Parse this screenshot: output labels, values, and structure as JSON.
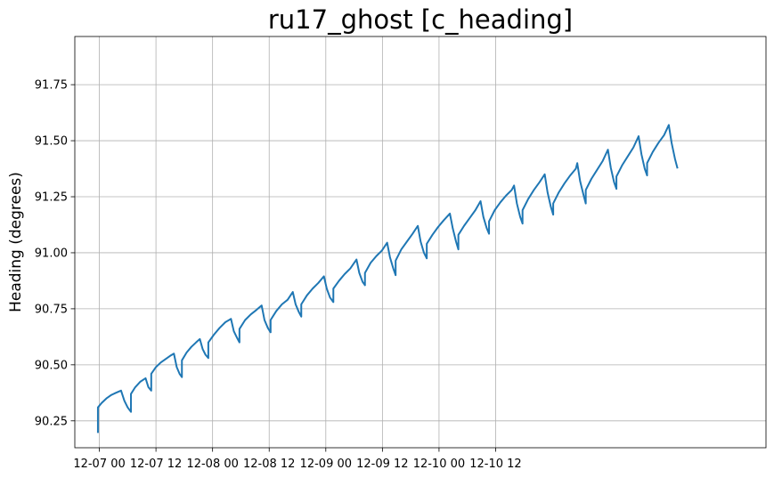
{
  "chart_data": {
    "type": "line",
    "title": "ru17_ghost [c_heading]",
    "xlabel": "",
    "ylabel": "Heading (degrees)",
    "x_unit": "hours since 12-07 00",
    "xlim": [
      -5.2,
      141.3
    ],
    "ylim": [
      90.13,
      91.965
    ],
    "grid": true,
    "legend": "none",
    "x_ticks": [
      {
        "value": 0,
        "label": "12-07 00"
      },
      {
        "value": 12,
        "label": "12-07 12"
      },
      {
        "value": 24,
        "label": "12-08 00"
      },
      {
        "value": 36,
        "label": "12-08 12"
      },
      {
        "value": 48,
        "label": "12-09 00"
      },
      {
        "value": 60,
        "label": "12-09 12"
      },
      {
        "value": 72,
        "label": "12-10 00"
      },
      {
        "value": 84,
        "label": "12-10 12"
      }
    ],
    "y_ticks": [
      {
        "value": 90.25,
        "label": "90.25"
      },
      {
        "value": 90.5,
        "label": "90.50"
      },
      {
        "value": 90.75,
        "label": "90.75"
      },
      {
        "value": 91.0,
        "label": "91.00"
      },
      {
        "value": 91.25,
        "label": "91.25"
      },
      {
        "value": 91.5,
        "label": "91.50"
      },
      {
        "value": 91.75,
        "label": "91.75"
      }
    ],
    "series": [
      {
        "name": "c_heading",
        "color": "#1f77b4",
        "points": [
          [
            -0.3,
            90.2
          ],
          [
            -0.3,
            90.31
          ],
          [
            0.5,
            90.33
          ],
          [
            1.5,
            90.35
          ],
          [
            2.5,
            90.365
          ],
          [
            3.5,
            90.375
          ],
          [
            4.6,
            90.385
          ],
          [
            5.3,
            90.34
          ],
          [
            6.0,
            90.31
          ],
          [
            6.7,
            90.29
          ],
          [
            6.7,
            90.37
          ],
          [
            7.6,
            90.4
          ],
          [
            8.7,
            90.425
          ],
          [
            9.8,
            90.44
          ],
          [
            10.4,
            90.4
          ],
          [
            11.0,
            90.385
          ],
          [
            11.0,
            90.46
          ],
          [
            12.0,
            90.49
          ],
          [
            13.0,
            90.51
          ],
          [
            14.0,
            90.525
          ],
          [
            15.0,
            90.54
          ],
          [
            15.8,
            90.55
          ],
          [
            16.4,
            90.49
          ],
          [
            17.0,
            90.46
          ],
          [
            17.5,
            90.445
          ],
          [
            17.5,
            90.52
          ],
          [
            18.5,
            90.555
          ],
          [
            19.5,
            90.58
          ],
          [
            20.5,
            90.6
          ],
          [
            21.3,
            90.615
          ],
          [
            21.9,
            90.57
          ],
          [
            22.5,
            90.545
          ],
          [
            23.1,
            90.53
          ],
          [
            23.1,
            90.6
          ],
          [
            24.3,
            90.635
          ],
          [
            25.5,
            90.665
          ],
          [
            26.7,
            90.69
          ],
          [
            27.9,
            90.705
          ],
          [
            28.5,
            90.65
          ],
          [
            29.2,
            90.62
          ],
          [
            29.7,
            90.6
          ],
          [
            29.7,
            90.66
          ],
          [
            30.9,
            90.7
          ],
          [
            32.1,
            90.725
          ],
          [
            33.3,
            90.745
          ],
          [
            34.4,
            90.765
          ],
          [
            35.0,
            90.7
          ],
          [
            35.7,
            90.665
          ],
          [
            36.3,
            90.645
          ],
          [
            36.3,
            90.7
          ],
          [
            37.5,
            90.74
          ],
          [
            38.7,
            90.77
          ],
          [
            39.9,
            90.79
          ],
          [
            41.0,
            90.825
          ],
          [
            41.6,
            90.77
          ],
          [
            42.3,
            90.735
          ],
          [
            42.8,
            90.715
          ],
          [
            42.8,
            90.77
          ],
          [
            44.0,
            90.81
          ],
          [
            45.2,
            90.84
          ],
          [
            46.4,
            90.865
          ],
          [
            47.6,
            90.895
          ],
          [
            48.2,
            90.84
          ],
          [
            48.9,
            90.8
          ],
          [
            49.6,
            90.78
          ],
          [
            49.6,
            90.84
          ],
          [
            50.8,
            90.875
          ],
          [
            52.0,
            90.905
          ],
          [
            53.2,
            90.93
          ],
          [
            54.5,
            90.97
          ],
          [
            55.1,
            90.91
          ],
          [
            55.8,
            90.87
          ],
          [
            56.3,
            90.855
          ],
          [
            56.3,
            90.91
          ],
          [
            57.5,
            90.955
          ],
          [
            58.7,
            90.985
          ],
          [
            59.9,
            91.01
          ],
          [
            61.0,
            91.045
          ],
          [
            61.6,
            90.98
          ],
          [
            62.3,
            90.93
          ],
          [
            62.8,
            90.9
          ],
          [
            62.8,
            90.965
          ],
          [
            64.0,
            91.015
          ],
          [
            65.2,
            91.05
          ],
          [
            66.4,
            91.085
          ],
          [
            67.5,
            91.12
          ],
          [
            68.1,
            91.05
          ],
          [
            68.8,
            91.0
          ],
          [
            69.4,
            90.975
          ],
          [
            69.4,
            91.04
          ],
          [
            70.6,
            91.08
          ],
          [
            71.8,
            91.115
          ],
          [
            73.0,
            91.145
          ],
          [
            74.3,
            91.175
          ],
          [
            74.9,
            91.11
          ],
          [
            75.6,
            91.05
          ],
          [
            76.1,
            91.015
          ],
          [
            76.1,
            91.08
          ],
          [
            77.3,
            91.12
          ],
          [
            78.5,
            91.155
          ],
          [
            79.7,
            91.19
          ],
          [
            80.8,
            91.23
          ],
          [
            81.4,
            91.16
          ],
          [
            82.1,
            91.11
          ],
          [
            82.6,
            91.085
          ],
          [
            82.6,
            91.14
          ],
          [
            83.8,
            91.19
          ],
          [
            85.0,
            91.225
          ],
          [
            86.2,
            91.255
          ],
          [
            87.4,
            91.28
          ],
          [
            87.9,
            91.3
          ],
          [
            88.5,
            91.22
          ],
          [
            89.2,
            91.16
          ],
          [
            89.7,
            91.13
          ],
          [
            89.7,
            91.19
          ],
          [
            90.9,
            91.24
          ],
          [
            92.1,
            91.28
          ],
          [
            93.3,
            91.315
          ],
          [
            94.4,
            91.35
          ],
          [
            95.0,
            91.27
          ],
          [
            95.7,
            91.205
          ],
          [
            96.2,
            91.17
          ],
          [
            96.2,
            91.22
          ],
          [
            97.4,
            91.27
          ],
          [
            98.6,
            91.31
          ],
          [
            99.8,
            91.345
          ],
          [
            101.0,
            91.375
          ],
          [
            101.3,
            91.4
          ],
          [
            101.9,
            91.32
          ],
          [
            102.6,
            91.26
          ],
          [
            103.1,
            91.22
          ],
          [
            103.1,
            91.28
          ],
          [
            104.3,
            91.33
          ],
          [
            105.5,
            91.37
          ],
          [
            106.7,
            91.41
          ],
          [
            107.8,
            91.46
          ],
          [
            108.4,
            91.38
          ],
          [
            109.1,
            91.315
          ],
          [
            109.6,
            91.285
          ],
          [
            109.6,
            91.34
          ],
          [
            110.8,
            91.39
          ],
          [
            112.0,
            91.43
          ],
          [
            113.2,
            91.47
          ],
          [
            114.3,
            91.52
          ],
          [
            114.9,
            91.44
          ],
          [
            115.6,
            91.375
          ],
          [
            116.1,
            91.345
          ],
          [
            116.1,
            91.4
          ],
          [
            117.3,
            91.45
          ],
          [
            118.5,
            91.49
          ],
          [
            119.7,
            91.525
          ],
          [
            120.7,
            91.57
          ],
          [
            121.3,
            91.49
          ],
          [
            122.0,
            91.42
          ],
          [
            122.5,
            91.38
          ]
        ]
      }
    ]
  }
}
